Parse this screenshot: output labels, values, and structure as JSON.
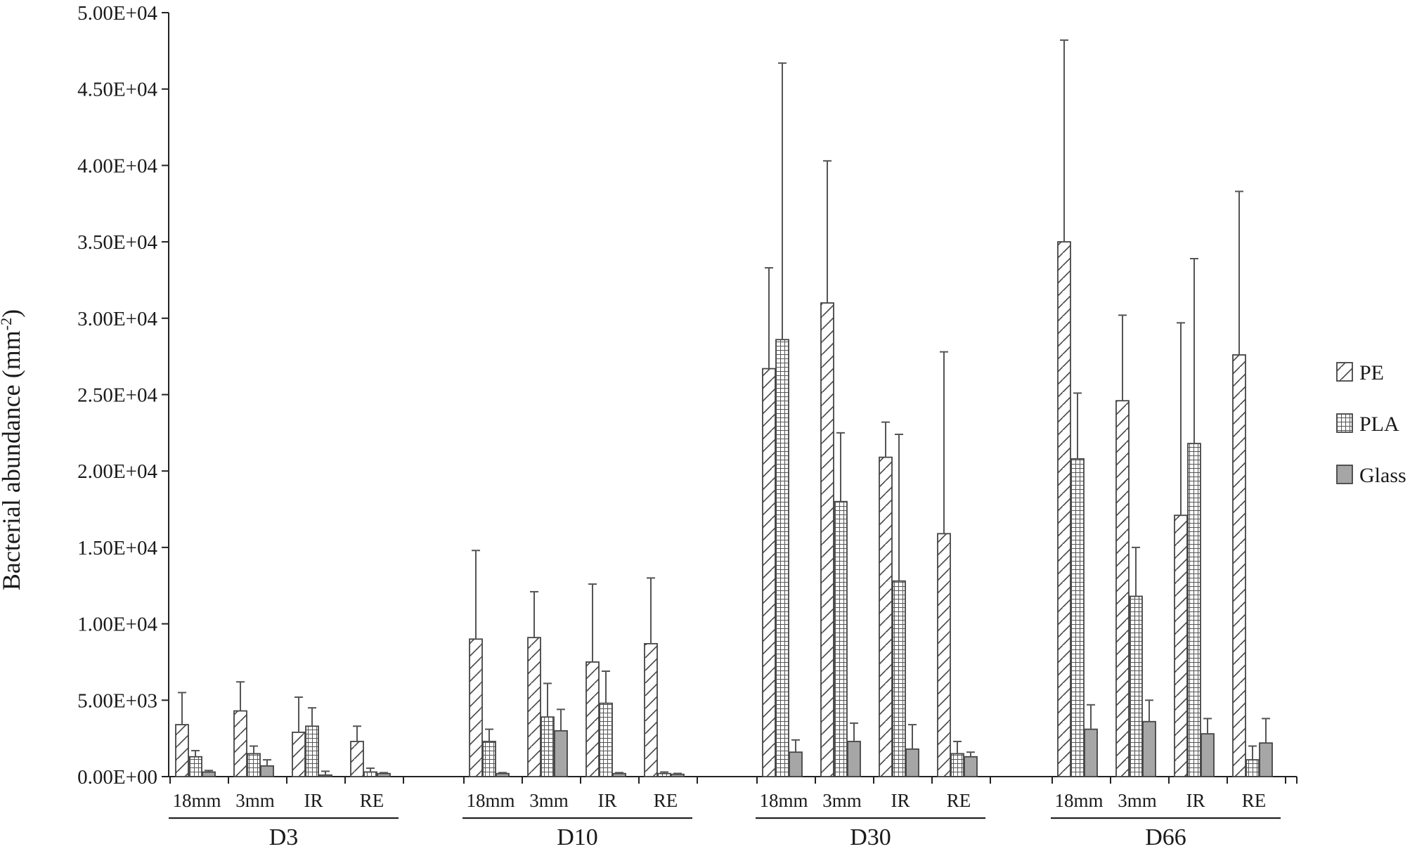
{
  "chart_data": {
    "type": "bar",
    "ylabel": "Bacterial abundance (mm",
    "ylabel_sup": "-2",
    "ylabel_close": ")",
    "ylim": [
      0,
      50000
    ],
    "yticks": [
      0,
      5000,
      10000,
      15000,
      20000,
      25000,
      30000,
      35000,
      40000,
      45000,
      50000
    ],
    "ytick_labels": [
      "0.00E+00",
      "5.00E+03",
      "1.00E+04",
      "1.50E+04",
      "2.00E+04",
      "2.50E+04",
      "3.00E+04",
      "3.50E+04",
      "4.00E+04",
      "4.50E+04",
      "5.00E+04"
    ],
    "grid": false,
    "legend_position": "right",
    "groups": [
      "D3",
      "D10",
      "D30",
      "D66"
    ],
    "categories": [
      "18mm",
      "3mm",
      "IR",
      "RE"
    ],
    "series": [
      {
        "name": "PE",
        "pattern": "diagonal-hatch",
        "values": [
          [
            3400,
            4300,
            2900,
            2300
          ],
          [
            9000,
            9100,
            7500,
            8700
          ],
          [
            26700,
            31000,
            20900,
            15900
          ],
          [
            35000,
            24600,
            17100,
            27600
          ]
        ],
        "errors": [
          [
            2100,
            1900,
            2300,
            1000
          ],
          [
            5800,
            3000,
            5100,
            4300
          ],
          [
            6600,
            9300,
            2300,
            11900
          ],
          [
            13200,
            5600,
            12600,
            10700
          ]
        ]
      },
      {
        "name": "PLA",
        "pattern": "grid-hatch",
        "values": [
          [
            1300,
            1500,
            3300,
            300
          ],
          [
            2300,
            3900,
            4800,
            200
          ],
          [
            28600,
            18000,
            12800,
            1500
          ],
          [
            20800,
            11800,
            21800,
            1100
          ]
        ],
        "errors": [
          [
            400,
            500,
            1200,
            250
          ],
          [
            800,
            2200,
            2100,
            100
          ],
          [
            18100,
            4500,
            9600,
            800
          ],
          [
            4300,
            3200,
            12100,
            900
          ]
        ]
      },
      {
        "name": "Glass",
        "pattern": "solid-gray",
        "values": [
          [
            300,
            700,
            100,
            200
          ],
          [
            200,
            3000,
            200,
            150
          ],
          [
            1600,
            2300,
            1800,
            1300
          ],
          [
            3100,
            3600,
            2800,
            2200
          ]
        ],
        "errors": [
          [
            100,
            400,
            250,
            60
          ],
          [
            60,
            1400,
            60,
            60
          ],
          [
            800,
            1200,
            1600,
            300
          ],
          [
            1600,
            1400,
            1000,
            1600
          ]
        ]
      }
    ]
  },
  "colors": {
    "bar_outline": "#444444",
    "glass_fill": "#a6a6a6",
    "hatch": "#444444",
    "axis": "#222222",
    "error_bar": "#555555",
    "background": "#ffffff"
  }
}
